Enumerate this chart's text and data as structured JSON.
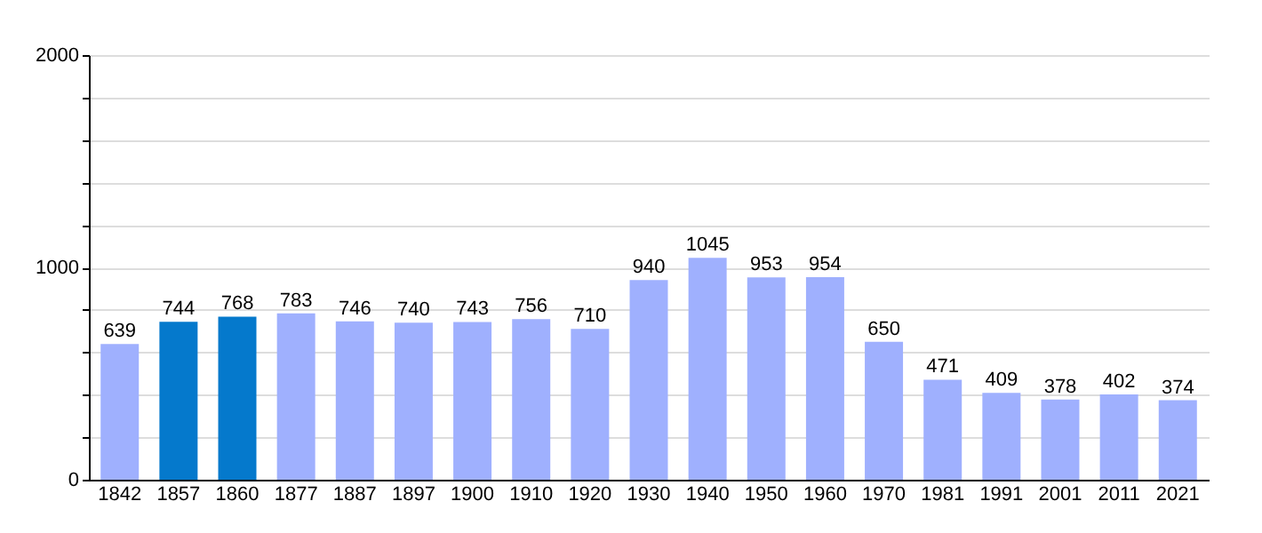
{
  "chart_data": {
    "type": "bar",
    "categories": [
      "1842",
      "1857",
      "1860",
      "1877",
      "1887",
      "1897",
      "1900",
      "1910",
      "1920",
      "1930",
      "1940",
      "1950",
      "1960",
      "1970",
      "1981",
      "1991",
      "2001",
      "2011",
      "2021"
    ],
    "values": [
      639,
      744,
      768,
      783,
      746,
      740,
      743,
      756,
      710,
      940,
      1045,
      953,
      954,
      650,
      471,
      409,
      378,
      402,
      374
    ],
    "colors": [
      "#9fb0fe",
      "#0579cc",
      "#0579cc",
      "#9fb0fe",
      "#9fb0fe",
      "#9fb0fe",
      "#9fb0fe",
      "#9fb0fe",
      "#9fb0fe",
      "#9fb0fe",
      "#9fb0fe",
      "#9fb0fe",
      "#9fb0fe",
      "#9fb0fe",
      "#9fb0fe",
      "#9fb0fe",
      "#9fb0fe",
      "#9fb0fe",
      "#9fb0fe"
    ],
    "ylim": [
      0,
      2000
    ],
    "yticks": [
      0,
      {
        "value": 200,
        "label": null
      },
      {
        "value": 400,
        "label": null
      },
      {
        "value": 600,
        "label": null
      },
      {
        "value": 800,
        "label": null
      },
      1000,
      {
        "value": 1200,
        "label": null
      },
      {
        "value": 1400,
        "label": null
      },
      {
        "value": 1600,
        "label": null
      },
      {
        "value": 1800,
        "label": null
      },
      2000
    ],
    "grid": true,
    "data_labels": true
  }
}
